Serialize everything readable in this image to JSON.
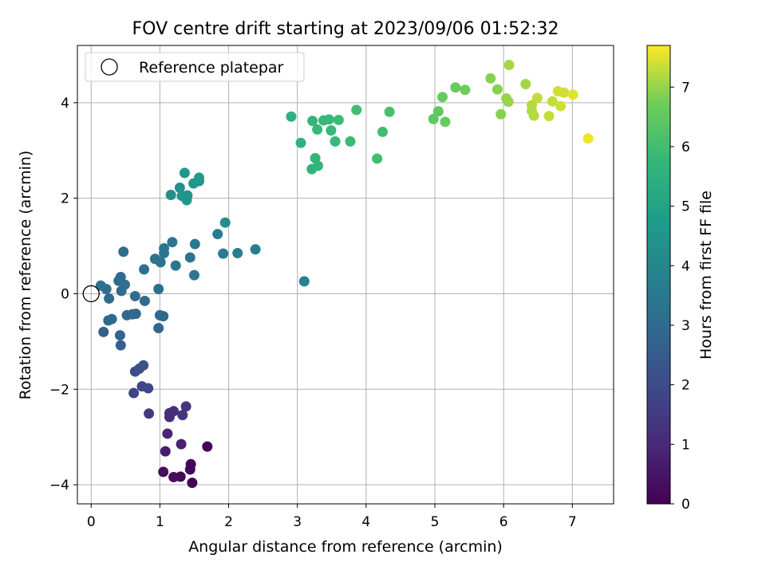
{
  "chart_data": {
    "type": "scatter",
    "title": "FOV centre drift starting at 2023/09/06 01:52:32",
    "xlabel": "Angular distance from reference (arcmin)",
    "ylabel": "Rotation from reference (arcmin)",
    "xlim": [
      -0.2,
      7.6
    ],
    "ylim": [
      -4.4,
      5.2
    ],
    "xticks": [
      0,
      1,
      2,
      3,
      4,
      5,
      6,
      7
    ],
    "yticks": [
      -4,
      -2,
      0,
      2,
      4
    ],
    "grid": true,
    "legend": {
      "placement": "top-left",
      "entries": [
        "Reference platepar"
      ]
    },
    "reference_point": {
      "x": 0,
      "y": 0,
      "label": "Reference platepar"
    },
    "colorbar": {
      "label": "Hours from first FF file",
      "colormap": "viridis",
      "range": [
        0,
        7.7
      ],
      "ticks": [
        0,
        1,
        2,
        3,
        4,
        5,
        6,
        7
      ]
    },
    "points": [
      {
        "x": 1.69,
        "y": -3.2,
        "c": 0.1
      },
      {
        "x": 1.45,
        "y": -3.57,
        "c": 0.1
      },
      {
        "x": 1.44,
        "y": -3.68,
        "c": 0.15
      },
      {
        "x": 1.47,
        "y": -3.96,
        "c": 0.05
      },
      {
        "x": 1.3,
        "y": -3.83,
        "c": 0.2
      },
      {
        "x": 1.2,
        "y": -3.84,
        "c": 0.3
      },
      {
        "x": 1.05,
        "y": -3.73,
        "c": 0.3
      },
      {
        "x": 1.08,
        "y": -3.3,
        "c": 0.7
      },
      {
        "x": 1.31,
        "y": -3.15,
        "c": 0.8
      },
      {
        "x": 1.11,
        "y": -2.93,
        "c": 0.9
      },
      {
        "x": 1.14,
        "y": -2.58,
        "c": 1.1
      },
      {
        "x": 1.2,
        "y": -2.46,
        "c": 1.2
      },
      {
        "x": 1.14,
        "y": -2.5,
        "c": 1.1
      },
      {
        "x": 1.38,
        "y": -2.36,
        "c": 1.3
      },
      {
        "x": 1.33,
        "y": -2.54,
        "c": 1.4
      },
      {
        "x": 0.84,
        "y": -2.51,
        "c": 1.5
      },
      {
        "x": 0.62,
        "y": -2.08,
        "c": 1.8
      },
      {
        "x": 0.74,
        "y": -1.94,
        "c": 1.8
      },
      {
        "x": 0.83,
        "y": -1.98,
        "c": 1.9
      },
      {
        "x": 0.64,
        "y": -1.63,
        "c": 2.0
      },
      {
        "x": 0.7,
        "y": -1.57,
        "c": 2.1
      },
      {
        "x": 0.76,
        "y": -1.5,
        "c": 2.2
      },
      {
        "x": 0.18,
        "y": -0.8,
        "c": 2.6
      },
      {
        "x": 0.43,
        "y": -1.08,
        "c": 2.7
      },
      {
        "x": 0.42,
        "y": -0.87,
        "c": 2.8
      },
      {
        "x": 0.25,
        "y": -0.56,
        "c": 2.9
      },
      {
        "x": 0.3,
        "y": -0.53,
        "c": 2.9
      },
      {
        "x": 0.52,
        "y": -0.45,
        "c": 2.9
      },
      {
        "x": 0.6,
        "y": -0.43,
        "c": 2.9
      },
      {
        "x": 0.65,
        "y": -0.42,
        "c": 2.9
      },
      {
        "x": 0.64,
        "y": -0.05,
        "c": 3.0
      },
      {
        "x": 0.78,
        "y": -0.15,
        "c": 3.0
      },
      {
        "x": 0.98,
        "y": -0.72,
        "c": 2.9
      },
      {
        "x": 1.0,
        "y": -0.45,
        "c": 2.9
      },
      {
        "x": 1.05,
        "y": -0.47,
        "c": 2.9
      },
      {
        "x": 0.98,
        "y": 0.1,
        "c": 3.1
      },
      {
        "x": 0.26,
        "y": -0.1,
        "c": 3.0
      },
      {
        "x": 0.14,
        "y": 0.17,
        "c": 3.1
      },
      {
        "x": 0.22,
        "y": 0.1,
        "c": 3.1
      },
      {
        "x": 0.4,
        "y": 0.27,
        "c": 3.0
      },
      {
        "x": 0.43,
        "y": 0.35,
        "c": 3.0
      },
      {
        "x": 0.44,
        "y": 0.06,
        "c": 3.0
      },
      {
        "x": 0.49,
        "y": 0.19,
        "c": 3.1
      },
      {
        "x": 0.47,
        "y": 0.88,
        "c": 3.2
      },
      {
        "x": 0.77,
        "y": 0.51,
        "c": 3.2
      },
      {
        "x": 0.93,
        "y": 0.73,
        "c": 3.3
      },
      {
        "x": 1.01,
        "y": 0.66,
        "c": 3.3
      },
      {
        "x": 1.06,
        "y": 0.85,
        "c": 3.4
      },
      {
        "x": 1.06,
        "y": 0.95,
        "c": 3.4
      },
      {
        "x": 1.18,
        "y": 1.08,
        "c": 3.4
      },
      {
        "x": 1.23,
        "y": 0.59,
        "c": 3.4
      },
      {
        "x": 1.44,
        "y": 0.76,
        "c": 3.4
      },
      {
        "x": 1.5,
        "y": 0.39,
        "c": 3.4
      },
      {
        "x": 1.51,
        "y": 1.04,
        "c": 3.5
      },
      {
        "x": 1.84,
        "y": 1.25,
        "c": 3.6
      },
      {
        "x": 1.92,
        "y": 0.84,
        "c": 3.6
      },
      {
        "x": 1.95,
        "y": 1.49,
        "c": 4.2
      },
      {
        "x": 2.13,
        "y": 0.85,
        "c": 3.7
      },
      {
        "x": 2.39,
        "y": 0.93,
        "c": 3.7
      },
      {
        "x": 3.1,
        "y": 0.26,
        "c": 3.8
      },
      {
        "x": 1.16,
        "y": 2.07,
        "c": 4.3
      },
      {
        "x": 1.29,
        "y": 2.22,
        "c": 4.4
      },
      {
        "x": 1.32,
        "y": 2.05,
        "c": 4.5
      },
      {
        "x": 1.39,
        "y": 1.96,
        "c": 4.6
      },
      {
        "x": 1.4,
        "y": 2.06,
        "c": 4.5
      },
      {
        "x": 1.36,
        "y": 2.53,
        "c": 4.6
      },
      {
        "x": 1.49,
        "y": 2.31,
        "c": 4.6
      },
      {
        "x": 1.57,
        "y": 2.36,
        "c": 4.6
      },
      {
        "x": 1.57,
        "y": 2.43,
        "c": 4.7
      },
      {
        "x": 2.91,
        "y": 3.71,
        "c": 5.5
      },
      {
        "x": 3.05,
        "y": 3.16,
        "c": 5.6
      },
      {
        "x": 3.22,
        "y": 3.62,
        "c": 5.7
      },
      {
        "x": 3.21,
        "y": 2.61,
        "c": 5.6
      },
      {
        "x": 3.26,
        "y": 2.84,
        "c": 5.7
      },
      {
        "x": 3.3,
        "y": 2.68,
        "c": 5.7
      },
      {
        "x": 3.29,
        "y": 3.44,
        "c": 5.8
      },
      {
        "x": 3.38,
        "y": 3.63,
        "c": 5.8
      },
      {
        "x": 3.46,
        "y": 3.65,
        "c": 5.8
      },
      {
        "x": 3.49,
        "y": 3.42,
        "c": 5.8
      },
      {
        "x": 3.55,
        "y": 3.19,
        "c": 5.8
      },
      {
        "x": 3.6,
        "y": 3.64,
        "c": 5.9
      },
      {
        "x": 3.77,
        "y": 3.19,
        "c": 5.9
      },
      {
        "x": 3.86,
        "y": 3.85,
        "c": 6.0
      },
      {
        "x": 4.16,
        "y": 2.83,
        "c": 6.0
      },
      {
        "x": 4.24,
        "y": 3.39,
        "c": 6.0
      },
      {
        "x": 4.34,
        "y": 3.81,
        "c": 6.1
      },
      {
        "x": 4.98,
        "y": 3.66,
        "c": 6.5
      },
      {
        "x": 5.05,
        "y": 3.82,
        "c": 6.5
      },
      {
        "x": 5.11,
        "y": 4.12,
        "c": 6.6
      },
      {
        "x": 5.15,
        "y": 3.6,
        "c": 6.6
      },
      {
        "x": 5.3,
        "y": 4.32,
        "c": 6.6
      },
      {
        "x": 5.44,
        "y": 4.27,
        "c": 6.7
      },
      {
        "x": 5.81,
        "y": 4.51,
        "c": 6.9
      },
      {
        "x": 5.91,
        "y": 4.28,
        "c": 6.9
      },
      {
        "x": 5.96,
        "y": 3.76,
        "c": 6.9
      },
      {
        "x": 6.04,
        "y": 4.09,
        "c": 7.0
      },
      {
        "x": 6.07,
        "y": 4.02,
        "c": 7.0
      },
      {
        "x": 6.08,
        "y": 4.79,
        "c": 7.1
      },
      {
        "x": 6.32,
        "y": 4.39,
        "c": 7.1
      },
      {
        "x": 6.41,
        "y": 3.83,
        "c": 7.2
      },
      {
        "x": 6.41,
        "y": 3.95,
        "c": 7.2
      },
      {
        "x": 6.44,
        "y": 3.73,
        "c": 7.2
      },
      {
        "x": 6.49,
        "y": 4.1,
        "c": 7.3
      },
      {
        "x": 6.66,
        "y": 3.72,
        "c": 7.3
      },
      {
        "x": 6.71,
        "y": 4.03,
        "c": 7.3
      },
      {
        "x": 6.79,
        "y": 4.24,
        "c": 7.4
      },
      {
        "x": 6.83,
        "y": 3.93,
        "c": 7.4
      },
      {
        "x": 6.88,
        "y": 4.21,
        "c": 7.4
      },
      {
        "x": 7.01,
        "y": 4.17,
        "c": 7.5
      },
      {
        "x": 7.23,
        "y": 3.25,
        "c": 7.6
      }
    ]
  }
}
